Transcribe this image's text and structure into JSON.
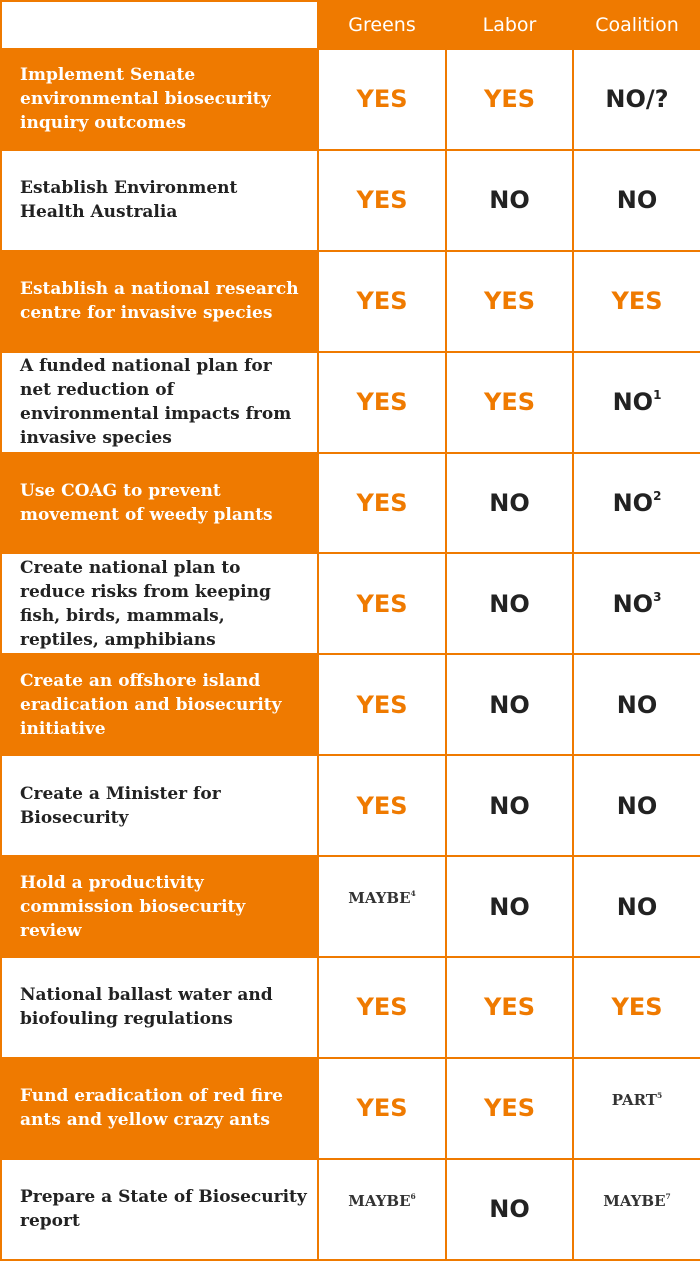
{
  "header": {
    "greens": "Greens",
    "labor": "Labor",
    "coalition": "Coalition"
  },
  "colors": {
    "accent": "#ef7a00",
    "text": "#222222",
    "background": "#ffffff"
  },
  "rows": [
    {
      "policy": "Implement Senate environmental biosecurity inquiry outcomes",
      "greens": "YES",
      "labor": "YES",
      "coalition": "NO/?"
    },
    {
      "policy": "Establish Environment Health Australia",
      "greens": "YES",
      "labor": "NO",
      "coalition": "NO"
    },
    {
      "policy": "Establish a national research centre for invasive species",
      "greens": "YES",
      "labor": "YES",
      "coalition": "YES"
    },
    {
      "policy": "A funded national plan for net reduction of environmental impacts from invasive species",
      "greens": "YES",
      "labor": "YES",
      "coalition": "NO",
      "coalition_note": "1"
    },
    {
      "policy": "Use COAG to prevent movement of weedy plants",
      "greens": "YES",
      "labor": "NO",
      "coalition": "NO",
      "coalition_note": "2"
    },
    {
      "policy": "Create national plan to reduce risks from keeping fish, birds, mammals, reptiles, amphibians",
      "greens": "YES",
      "labor": "NO",
      "coalition": "NO",
      "coalition_note": "3"
    },
    {
      "policy": "Create an offshore island eradication and biosecurity initiative",
      "greens": "YES",
      "labor": "NO",
      "coalition": "NO"
    },
    {
      "policy": "Create a Minister for Biosecurity",
      "greens": "YES",
      "labor": "NO",
      "coalition": "NO"
    },
    {
      "policy": "Hold a productivity commission biosecurity review",
      "greens": "MAYBE",
      "greens_note": "4",
      "labor": "NO",
      "coalition": "NO"
    },
    {
      "policy": "National ballast water and biofouling regulations",
      "greens": "YES",
      "labor": "YES",
      "coalition": "YES"
    },
    {
      "policy": "Fund eradication of red fire ants and yellow crazy ants",
      "greens": "YES",
      "labor": "YES",
      "coalition": "PART",
      "coalition_note": "5"
    },
    {
      "policy": "Prepare a State of Biosecurity report",
      "greens": "MAYBE",
      "greens_note": "6",
      "labor": "NO",
      "coalition": "MAYBE",
      "coalition_note": "7"
    }
  ]
}
